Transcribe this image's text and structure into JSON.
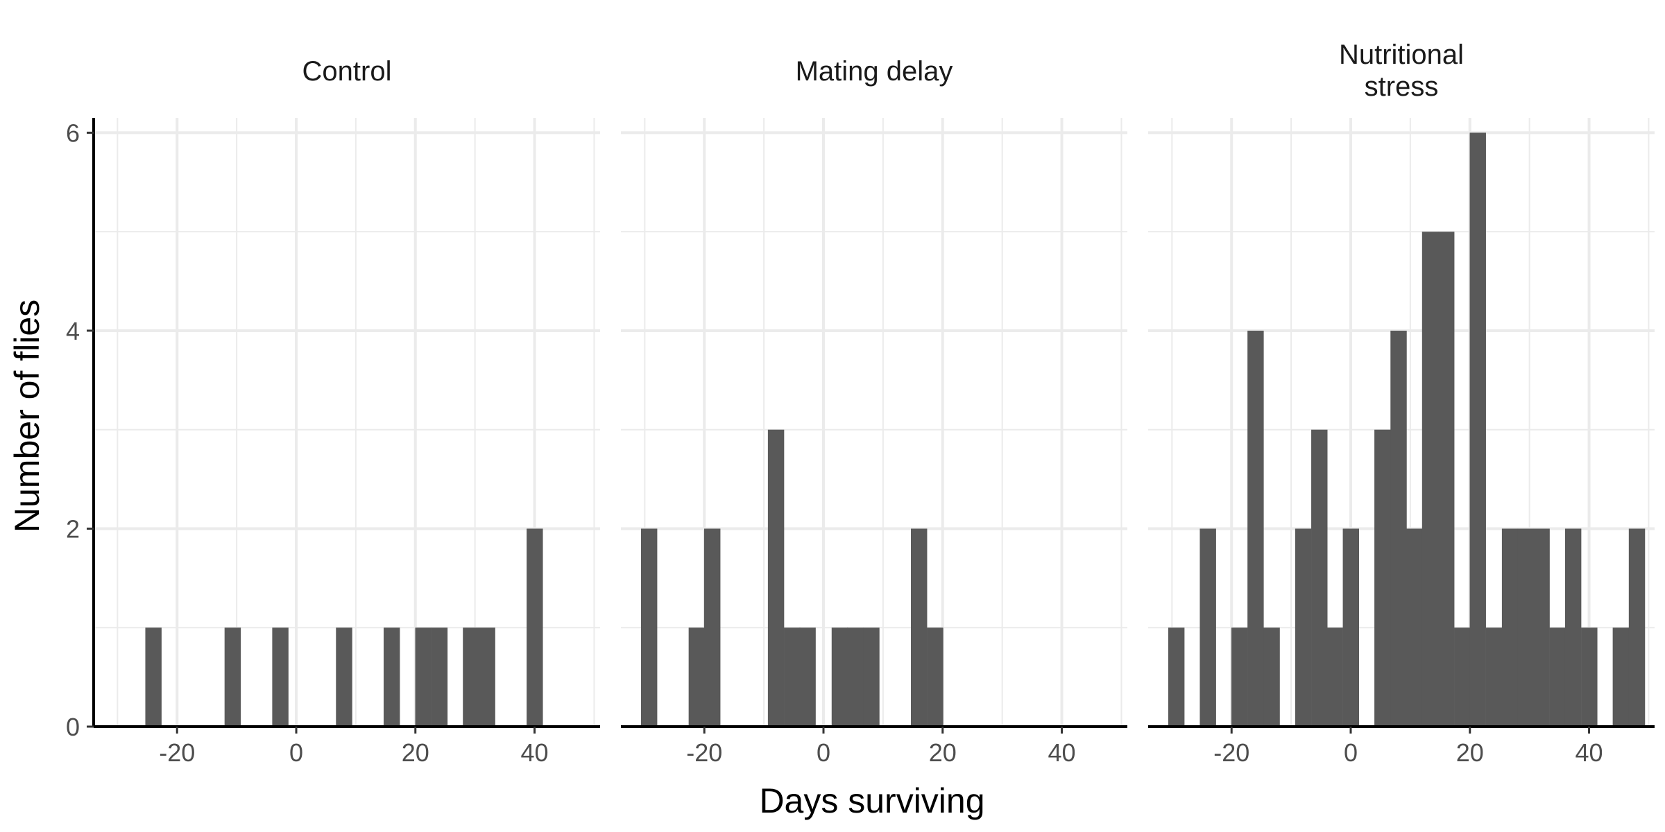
{
  "chart_data": {
    "type": "bar",
    "xlabel": "Days surviving",
    "ylabel": "Number of flies",
    "xlim": [
      -34,
      51
    ],
    "ylim": [
      0,
      6.15
    ],
    "x_ticks": [
      -20,
      0,
      20,
      40
    ],
    "y_ticks": [
      0,
      2,
      4,
      6
    ],
    "bin_width": 2.66,
    "bar_color": "#595959",
    "grid": true,
    "panels": [
      {
        "label": [
          "Control"
        ],
        "bars": [
          {
            "x": -24.0,
            "count": 1
          },
          {
            "x": -10.7,
            "count": 1
          },
          {
            "x": -2.7,
            "count": 1
          },
          {
            "x": 8.0,
            "count": 1
          },
          {
            "x": 16.0,
            "count": 1
          },
          {
            "x": 21.3,
            "count": 1
          },
          {
            "x": 24.0,
            "count": 1
          },
          {
            "x": 29.3,
            "count": 1
          },
          {
            "x": 32.0,
            "count": 1
          },
          {
            "x": 40.0,
            "count": 2
          }
        ]
      },
      {
        "label": [
          "Mating delay"
        ],
        "bars": [
          {
            "x": -29.3,
            "count": 2
          },
          {
            "x": -21.3,
            "count": 1
          },
          {
            "x": -18.7,
            "count": 2
          },
          {
            "x": -8.0,
            "count": 3
          },
          {
            "x": -5.3,
            "count": 1
          },
          {
            "x": -2.7,
            "count": 1
          },
          {
            "x": 2.7,
            "count": 1
          },
          {
            "x": 5.3,
            "count": 1
          },
          {
            "x": 8.0,
            "count": 1
          },
          {
            "x": 16.0,
            "count": 2
          },
          {
            "x": 18.7,
            "count": 1
          }
        ]
      },
      {
        "label": [
          "Nutritional",
          "stress"
        ],
        "bars": [
          {
            "x": -29.3,
            "count": 1
          },
          {
            "x": -24.0,
            "count": 2
          },
          {
            "x": -18.7,
            "count": 1
          },
          {
            "x": -16.0,
            "count": 4
          },
          {
            "x": -13.3,
            "count": 1
          },
          {
            "x": -8.0,
            "count": 2
          },
          {
            "x": -5.3,
            "count": 3
          },
          {
            "x": -2.7,
            "count": 1
          },
          {
            "x": 0.0,
            "count": 2
          },
          {
            "x": 5.3,
            "count": 3
          },
          {
            "x": 8.0,
            "count": 4
          },
          {
            "x": 10.7,
            "count": 2
          },
          {
            "x": 13.3,
            "count": 5
          },
          {
            "x": 16.0,
            "count": 5
          },
          {
            "x": 18.7,
            "count": 1
          },
          {
            "x": 21.3,
            "count": 6
          },
          {
            "x": 24.0,
            "count": 1
          },
          {
            "x": 26.7,
            "count": 2
          },
          {
            "x": 29.3,
            "count": 2
          },
          {
            "x": 32.0,
            "count": 2
          },
          {
            "x": 34.7,
            "count": 1
          },
          {
            "x": 37.3,
            "count": 2
          },
          {
            "x": 40.0,
            "count": 1
          },
          {
            "x": 45.3,
            "count": 1
          },
          {
            "x": 48.0,
            "count": 2
          }
        ]
      }
    ]
  }
}
